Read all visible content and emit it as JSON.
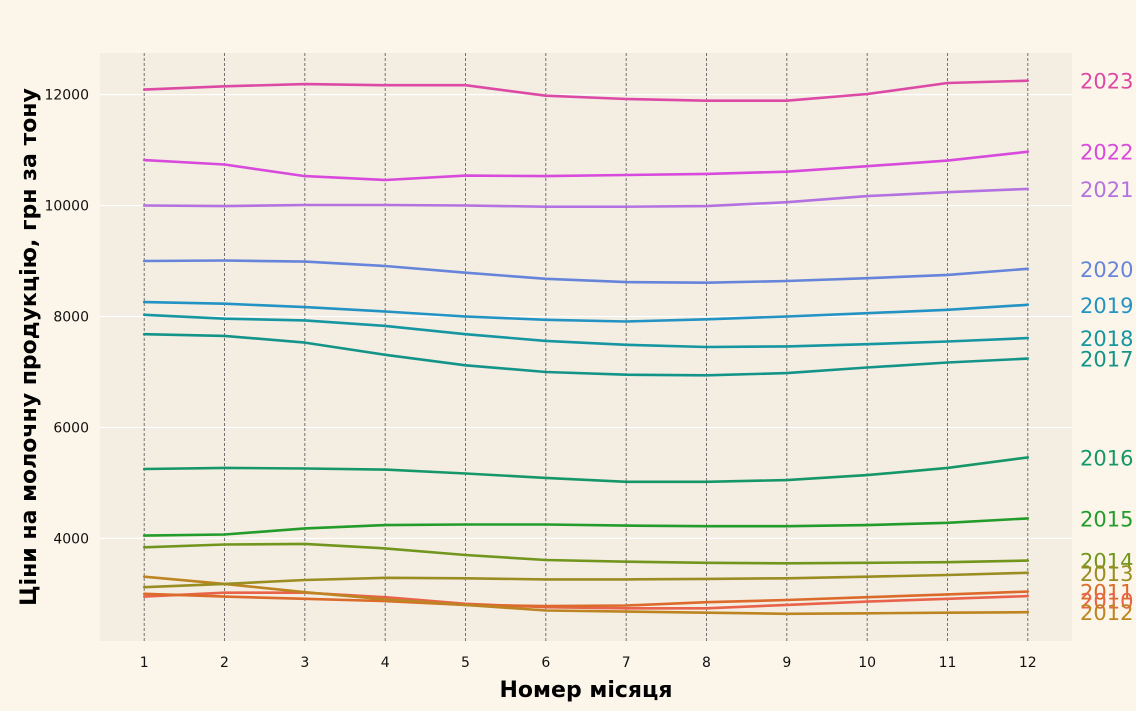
{
  "chart_data": {
    "type": "line",
    "title": "",
    "xlabel": "Номер місяця",
    "ylabel": "Ціни на молочну продукцію, грн за тону",
    "x": [
      1,
      2,
      3,
      4,
      5,
      6,
      7,
      8,
      9,
      10,
      11,
      12
    ],
    "xlim": [
      0.45,
      12.55
    ],
    "ylim": [
      2150,
      12750
    ],
    "yticks": [
      4000,
      6000,
      8000,
      10000,
      12000
    ],
    "grid": {
      "x": "dashed",
      "y": "solid"
    },
    "legend": "series labels at right end of lines",
    "series": [
      {
        "name": "2010",
        "color": "#e8634a",
        "values": [
          2950,
          3020,
          3020,
          2940,
          2820,
          2760,
          2740,
          2740,
          2800,
          2860,
          2910,
          2960
        ]
      },
      {
        "name": "2011",
        "color": "#dc6a2a",
        "values": [
          3000,
          2950,
          2910,
          2870,
          2800,
          2780,
          2790,
          2850,
          2890,
          2940,
          2990,
          3040
        ]
      },
      {
        "name": "2012",
        "color": "#bd8522",
        "values": [
          3310,
          3180,
          3030,
          2900,
          2800,
          2700,
          2680,
          2660,
          2640,
          2650,
          2660,
          2670
        ]
      },
      {
        "name": "2013",
        "color": "#9a8d22",
        "values": [
          3120,
          3180,
          3250,
          3290,
          3280,
          3260,
          3260,
          3270,
          3280,
          3310,
          3340,
          3380
        ]
      },
      {
        "name": "2014",
        "color": "#72961d",
        "values": [
          3840,
          3890,
          3900,
          3820,
          3700,
          3610,
          3580,
          3560,
          3550,
          3560,
          3570,
          3600
        ]
      },
      {
        "name": "2015",
        "color": "#239c2c",
        "values": [
          4050,
          4070,
          4180,
          4240,
          4250,
          4250,
          4230,
          4220,
          4220,
          4240,
          4280,
          4360
        ]
      },
      {
        "name": "2016",
        "color": "#16976a",
        "values": [
          5250,
          5270,
          5260,
          5240,
          5170,
          5090,
          5020,
          5020,
          5050,
          5140,
          5270,
          5460
        ]
      },
      {
        "name": "2017",
        "color": "#149488",
        "values": [
          7680,
          7650,
          7530,
          7310,
          7120,
          7000,
          6950,
          6940,
          6980,
          7080,
          7170,
          7240
        ]
      },
      {
        "name": "2018",
        "color": "#1696a0",
        "values": [
          8030,
          7960,
          7930,
          7830,
          7680,
          7560,
          7490,
          7450,
          7460,
          7500,
          7550,
          7610
        ]
      },
      {
        "name": "2019",
        "color": "#2393c3",
        "values": [
          8260,
          8230,
          8170,
          8090,
          8000,
          7940,
          7910,
          7950,
          8000,
          8060,
          8120,
          8210
        ]
      },
      {
        "name": "2020",
        "color": "#6685da",
        "values": [
          9000,
          9010,
          8990,
          8910,
          8790,
          8680,
          8620,
          8610,
          8640,
          8690,
          8750,
          8860
        ]
      },
      {
        "name": "2021",
        "color": "#b372e0",
        "values": [
          10000,
          9990,
          10010,
          10010,
          10000,
          9980,
          9980,
          9990,
          10060,
          10170,
          10240,
          10300
        ]
      },
      {
        "name": "2022",
        "color": "#d84adb",
        "values": [
          10820,
          10740,
          10530,
          10460,
          10540,
          10530,
          10550,
          10570,
          10610,
          10710,
          10810,
          10970
        ]
      },
      {
        "name": "2023",
        "color": "#dc4aa6",
        "values": [
          12090,
          12150,
          12190,
          12170,
          12170,
          11980,
          11920,
          11890,
          11890,
          12010,
          12210,
          12250
        ]
      }
    ]
  }
}
